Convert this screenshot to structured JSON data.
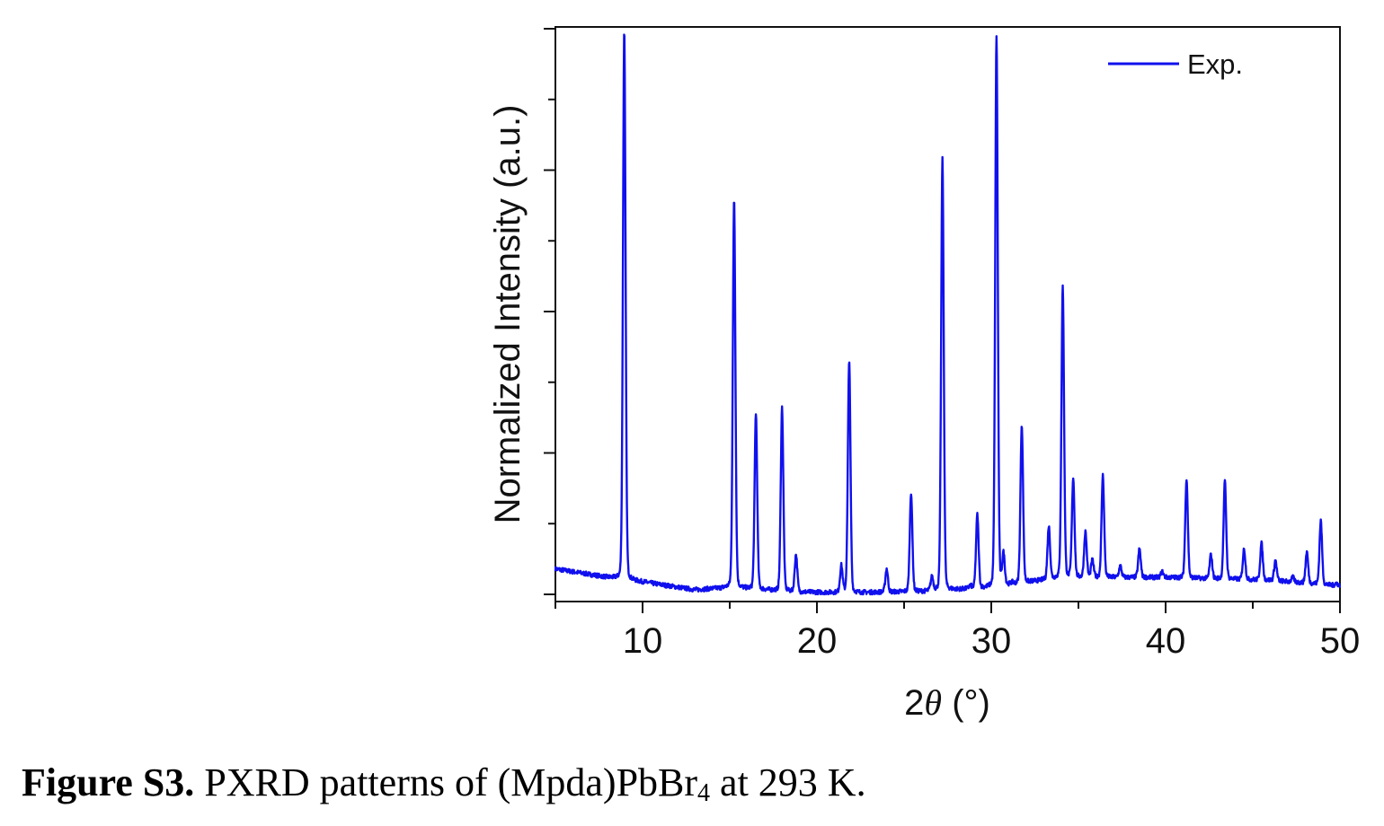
{
  "chart_data": {
    "type": "line",
    "xlabel_prefix": "2",
    "xlabel_theta": "θ",
    "xlabel_suffix": " (°)",
    "ylabel": "Normalized Intensity (a.u.)",
    "xlim": [
      5,
      50
    ],
    "ylim": [
      0,
      1
    ],
    "xticks": [
      10,
      20,
      30,
      40,
      50
    ],
    "y_tick_labels_shown": false,
    "grid": false,
    "legend_position": "top-right",
    "series": [
      {
        "name": "Exp.",
        "color": "#1010ee",
        "baseline": [
          [
            5,
            0.045
          ],
          [
            8,
            0.03
          ],
          [
            10,
            0.022
          ],
          [
            13,
            0.008
          ],
          [
            15,
            0.012
          ],
          [
            19,
            0.004
          ],
          [
            22,
            0.003
          ],
          [
            26,
            0.005
          ],
          [
            30,
            0.012
          ],
          [
            34,
            0.03
          ],
          [
            40,
            0.03
          ],
          [
            46,
            0.025
          ],
          [
            50,
            0.015
          ]
        ],
        "peaks": [
          [
            8.95,
            1.0
          ],
          [
            15.25,
            0.7
          ],
          [
            16.5,
            0.32
          ],
          [
            18.0,
            0.33
          ],
          [
            18.8,
            0.07
          ],
          [
            21.4,
            0.05
          ],
          [
            21.85,
            0.415
          ],
          [
            24.0,
            0.045
          ],
          [
            25.4,
            0.18
          ],
          [
            26.6,
            0.03
          ],
          [
            27.2,
            0.77
          ],
          [
            28.8,
            0.015
          ],
          [
            29.2,
            0.14
          ],
          [
            30.3,
            0.988
          ],
          [
            30.7,
            0.07
          ],
          [
            31.2,
            0.02
          ],
          [
            31.75,
            0.3
          ],
          [
            33.3,
            0.12
          ],
          [
            34.1,
            0.545
          ],
          [
            34.7,
            0.205
          ],
          [
            35.4,
            0.11
          ],
          [
            35.8,
            0.06
          ],
          [
            36.4,
            0.21
          ],
          [
            37.4,
            0.05
          ],
          [
            38.5,
            0.08
          ],
          [
            39.8,
            0.04
          ],
          [
            41.2,
            0.205
          ],
          [
            42.6,
            0.07
          ],
          [
            43.4,
            0.2
          ],
          [
            44.5,
            0.08
          ],
          [
            45.5,
            0.09
          ],
          [
            46.3,
            0.06
          ],
          [
            47.3,
            0.03
          ],
          [
            48.1,
            0.075
          ],
          [
            48.9,
            0.13
          ],
          [
            49.8,
            0.02
          ]
        ]
      }
    ]
  },
  "caption": {
    "label": "Figure S3.",
    "text_before": " PXRD patterns of (Mpda)PbBr",
    "subscript": "4",
    "text_after": " at 293 K."
  }
}
